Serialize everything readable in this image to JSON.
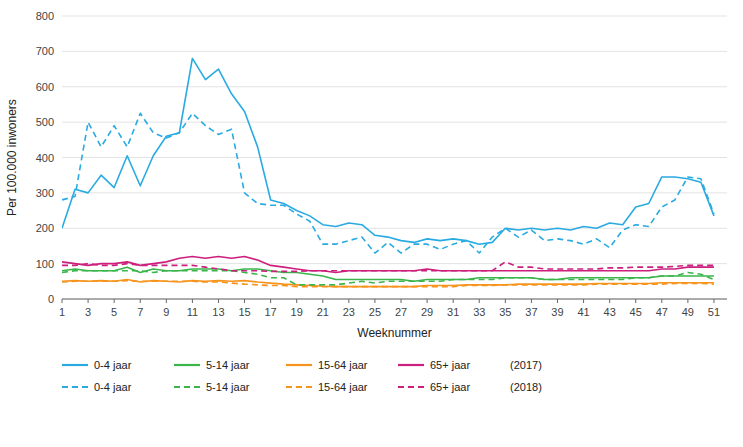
{
  "chart_data": {
    "type": "line",
    "x_label": "Weeknummer",
    "y_label": "Per 100.000 inwoners",
    "x": [
      1,
      2,
      3,
      4,
      5,
      6,
      7,
      8,
      9,
      10,
      11,
      12,
      13,
      14,
      15,
      16,
      17,
      18,
      19,
      20,
      21,
      22,
      23,
      24,
      25,
      26,
      27,
      28,
      29,
      30,
      31,
      32,
      33,
      34,
      35,
      36,
      37,
      38,
      39,
      40,
      41,
      42,
      43,
      44,
      45,
      46,
      47,
      48,
      49,
      50,
      51
    ],
    "xlim": [
      1,
      52
    ],
    "xticks": [
      1,
      3,
      5,
      7,
      9,
      11,
      13,
      15,
      17,
      19,
      21,
      23,
      25,
      27,
      29,
      31,
      33,
      35,
      37,
      39,
      41,
      43,
      45,
      47,
      49,
      51
    ],
    "ylim": [
      0,
      800
    ],
    "yticks": [
      0,
      100,
      200,
      300,
      400,
      500,
      600,
      700,
      800
    ],
    "grid": true,
    "legend": "bottom",
    "annotations": [
      "(2017)",
      "(2018)"
    ],
    "series": [
      {
        "name": "0-4 jaar",
        "color": "#29abe2",
        "line_style": "solid",
        "values": [
          200,
          310,
          300,
          350,
          315,
          405,
          320,
          405,
          460,
          470,
          680,
          620,
          650,
          580,
          530,
          430,
          280,
          270,
          250,
          235,
          210,
          205,
          215,
          210,
          180,
          175,
          165,
          160,
          170,
          165,
          170,
          165,
          155,
          160,
          200,
          195,
          200,
          195,
          200,
          195,
          205,
          200,
          215,
          210,
          260,
          270,
          345,
          345,
          340,
          330,
          235
        ]
      },
      {
        "name": "5-14 jaar",
        "color": "#39b54a",
        "line_style": "solid",
        "values": [
          80,
          85,
          80,
          80,
          80,
          90,
          75,
          85,
          80,
          80,
          85,
          85,
          85,
          80,
          85,
          85,
          80,
          75,
          75,
          70,
          65,
          55,
          55,
          55,
          55,
          55,
          55,
          50,
          55,
          55,
          55,
          55,
          60,
          60,
          60,
          60,
          60,
          55,
          55,
          60,
          60,
          60,
          60,
          60,
          60,
          60,
          65,
          65,
          65,
          65,
          65
        ]
      },
      {
        "name": "15-64 jaar",
        "color": "#f7941d",
        "line_style": "solid",
        "values": [
          50,
          52,
          50,
          52,
          50,
          55,
          48,
          52,
          50,
          48,
          52,
          50,
          52,
          50,
          52,
          48,
          45,
          42,
          40,
          38,
          36,
          35,
          35,
          35,
          35,
          35,
          35,
          35,
          38,
          38,
          38,
          40,
          40,
          40,
          40,
          42,
          42,
          42,
          42,
          42,
          42,
          44,
          44,
          44,
          44,
          44,
          46,
          46,
          46,
          46,
          46
        ]
      },
      {
        "name": "65+ jaar",
        "color": "#cc1f7e",
        "line_style": "solid",
        "values": [
          105,
          100,
          95,
          100,
          100,
          105,
          95,
          100,
          105,
          115,
          120,
          115,
          120,
          115,
          120,
          110,
          95,
          90,
          85,
          80,
          80,
          75,
          80,
          80,
          80,
          80,
          80,
          80,
          85,
          80,
          80,
          80,
          80,
          80,
          80,
          80,
          80,
          80,
          80,
          80,
          80,
          80,
          80,
          80,
          80,
          80,
          85,
          85,
          90,
          90,
          90
        ]
      },
      {
        "name": "0-4 jaar",
        "color": "#29abe2",
        "line_style": "dashed",
        "values": [
          280,
          290,
          500,
          430,
          490,
          430,
          525,
          470,
          455,
          470,
          525,
          490,
          465,
          480,
          300,
          270,
          265,
          265,
          240,
          220,
          155,
          155,
          165,
          175,
          130,
          160,
          130,
          155,
          155,
          140,
          155,
          165,
          130,
          175,
          200,
          175,
          195,
          165,
          170,
          165,
          155,
          170,
          145,
          195,
          210,
          205,
          260,
          280,
          345,
          340,
          240
        ]
      },
      {
        "name": "5-14 jaar",
        "color": "#39b54a",
        "line_style": "dashed",
        "values": [
          75,
          80,
          80,
          80,
          80,
          80,
          80,
          75,
          80,
          80,
          80,
          80,
          80,
          80,
          75,
          70,
          60,
          60,
          40,
          40,
          40,
          40,
          45,
          50,
          45,
          50,
          50,
          50,
          50,
          50,
          55,
          55,
          55,
          55,
          60,
          60,
          60,
          55,
          55,
          55,
          55,
          55,
          55,
          55,
          60,
          60,
          65,
          65,
          75,
          70,
          55
        ]
      },
      {
        "name": "15-64 jaar",
        "color": "#f7941d",
        "line_style": "dashed",
        "values": [
          48,
          50,
          50,
          50,
          50,
          52,
          50,
          50,
          50,
          50,
          50,
          48,
          48,
          45,
          42,
          40,
          38,
          38,
          35,
          35,
          35,
          35,
          35,
          35,
          35,
          35,
          35,
          35,
          35,
          35,
          35,
          38,
          38,
          38,
          40,
          40,
          40,
          40,
          40,
          40,
          40,
          42,
          42,
          42,
          42,
          42,
          42,
          44,
          44,
          44,
          42
        ]
      },
      {
        "name": "65+ jaar",
        "color": "#cc1f7e",
        "line_style": "dashed",
        "values": [
          95,
          95,
          100,
          95,
          95,
          100,
          95,
          95,
          95,
          95,
          95,
          90,
          85,
          80,
          80,
          80,
          78,
          78,
          78,
          80,
          80,
          80,
          80,
          80,
          80,
          80,
          80,
          80,
          80,
          80,
          80,
          80,
          80,
          80,
          105,
          90,
          90,
          85,
          85,
          85,
          85,
          85,
          88,
          88,
          90,
          90,
          90,
          92,
          95,
          95,
          95
        ]
      }
    ]
  }
}
